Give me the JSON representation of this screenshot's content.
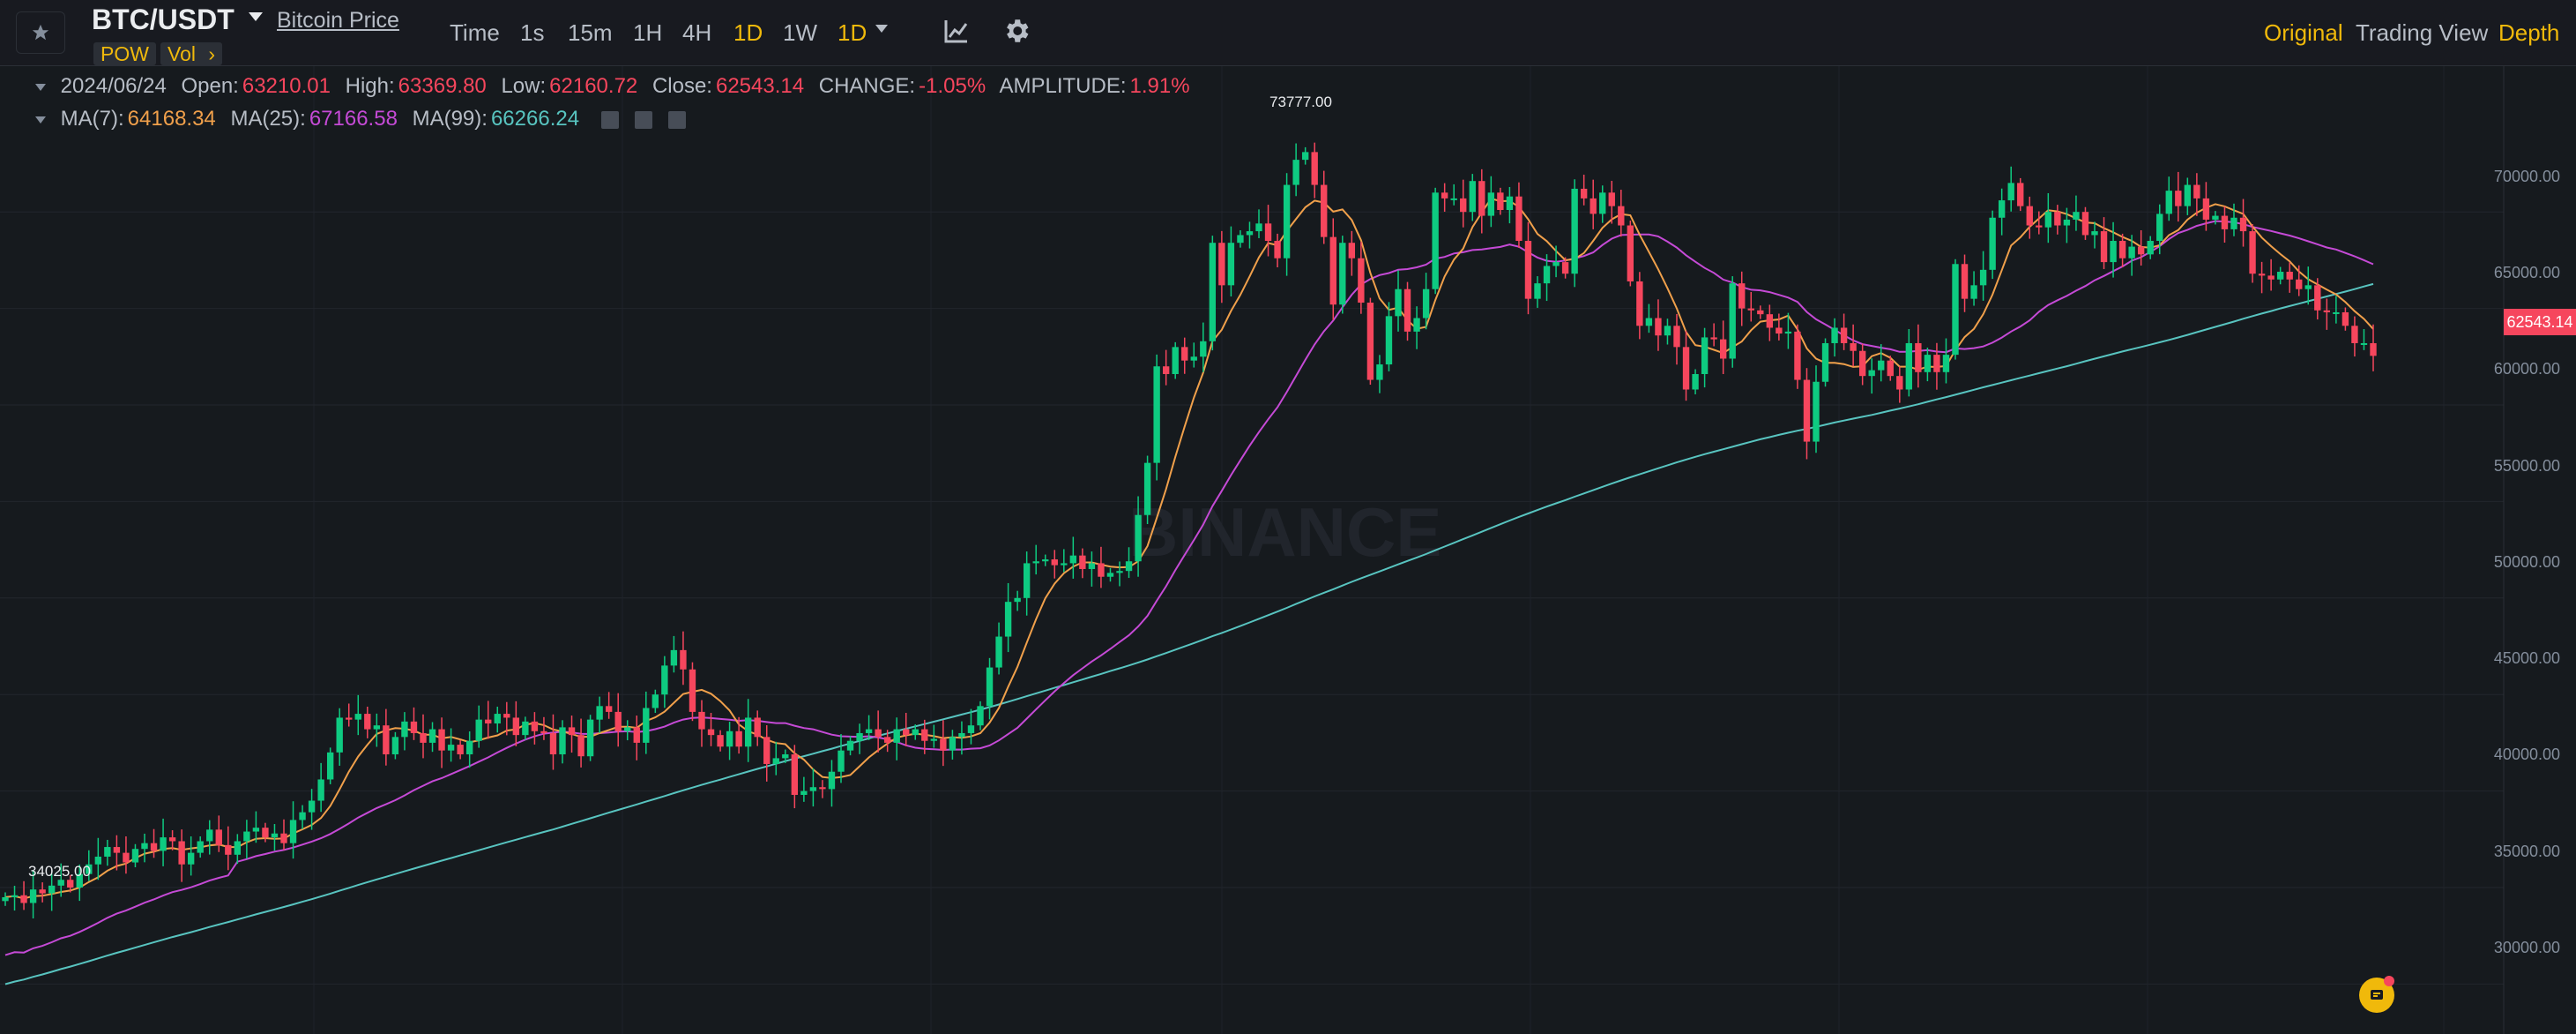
{
  "header": {
    "pair": "BTC/USDT",
    "subtitle_link": "Bitcoin Price",
    "tags": [
      "POW",
      "Vol"
    ],
    "intervals": [
      "Time",
      "1s",
      "15m",
      "1H",
      "4H",
      "1D",
      "1W"
    ],
    "active_interval": "1D",
    "interval_dropdown": "1D",
    "right_tabs": [
      "Original",
      "Trading View",
      "Depth"
    ],
    "active_right_tab": "Original"
  },
  "ohlc": {
    "date": "2024/06/24",
    "open_label": "Open:",
    "open": "63210.01",
    "high_label": "High:",
    "high": "63369.80",
    "low_label": "Low:",
    "low": "62160.72",
    "close_label": "Close:",
    "close": "62543.14",
    "change_label": "CHANGE:",
    "change": "-1.05%",
    "amplitude_label": "AMPLITUDE:",
    "amplitude": "1.91%"
  },
  "ma": {
    "ma7_label": "MA(7):",
    "ma7": "64168.34",
    "ma25_label": "MA(25):",
    "ma25": "67166.58",
    "ma99_label": "MA(99):",
    "ma99": "66266.24"
  },
  "chart": {
    "max_label": "73777.00",
    "min_label": "34025.00",
    "last_price": "62543.14",
    "watermark": "BINANCE",
    "y_ticks": [
      "70000.00",
      "65000.00",
      "60000.00",
      "55000.00",
      "50000.00",
      "45000.00",
      "40000.00",
      "35000.00",
      "30000.00"
    ]
  },
  "colors": {
    "up": "#0ecb81",
    "down": "#f6465d",
    "accent": "#f0b90b",
    "ma7": "#f0a04b",
    "ma25": "#c54ad6",
    "ma99": "#58c4c0"
  },
  "chart_data": {
    "type": "candlestick",
    "y_ticks": [
      30000,
      35000,
      40000,
      45000,
      50000,
      55000,
      60000,
      65000,
      70000
    ],
    "closes": [
      34500,
      34600,
      34200,
      34900,
      34700,
      35100,
      35400,
      35000,
      35700,
      36200,
      36600,
      37100,
      36800,
      36300,
      37000,
      37300,
      36900,
      37600,
      37400,
      36200,
      36800,
      37400,
      38000,
      37200,
      36700,
      37400,
      37900,
      38100,
      37600,
      37800,
      37300,
      38500,
      38900,
      39500,
      40600,
      42000,
      43800,
      43700,
      44000,
      43200,
      43400,
      41900,
      42800,
      43600,
      43000,
      42500,
      43200,
      42100,
      42400,
      41900,
      42600,
      43700,
      43500,
      44000,
      43800,
      42900,
      43600,
      43100,
      43000,
      41900,
      43300,
      42900,
      41800,
      43700,
      44400,
      44100,
      43100,
      43300,
      42500,
      44300,
      45000,
      46500,
      47300,
      46300,
      44100,
      43200,
      42900,
      42300,
      43100,
      42300,
      43800,
      42800,
      41400,
      41700,
      41900,
      39800,
      40000,
      40200,
      40100,
      41000,
      42100,
      42600,
      43000,
      43200,
      42800,
      42500,
      43200,
      42900,
      43200,
      42600,
      42700,
      42100,
      42800,
      43000,
      43400,
      44400,
      46400,
      48000,
      49800,
      50000,
      51800,
      51900,
      52000,
      51700,
      51800,
      52200,
      51500,
      51800,
      51100,
      51300,
      51400,
      51900,
      54300,
      57000,
      62000,
      61600,
      63000,
      62300,
      62500,
      63300,
      68400,
      66200,
      68400,
      68800,
      69000,
      69400,
      68500,
      67600,
      71400,
      72700,
      73100,
      71400,
      68700,
      65200,
      68400,
      67600,
      65300,
      61300,
      62100,
      64600,
      66000,
      63800,
      64500,
      66000,
      71000,
      70700,
      70700,
      70000,
      71600,
      69800,
      71000,
      70100,
      70800,
      68500,
      65500,
      66300,
      67200,
      67400,
      66800,
      71200,
      70700,
      69900,
      71000,
      70300,
      69300,
      66400,
      64100,
      64500,
      63600,
      64100,
      63000,
      60800,
      61600,
      63500,
      63400,
      62400,
      66300,
      65000,
      64900,
      64700,
      64000,
      63700,
      63800,
      61300,
      58100,
      61200,
      63200,
      64000,
      63200,
      62800,
      61500,
      61800,
      62300,
      61500,
      60800,
      63200,
      61700,
      62600,
      61700,
      62600,
      67300,
      65500,
      66200,
      67000,
      69700,
      70600,
      71500,
      70300,
      69300,
      69200,
      70000,
      69300,
      69600,
      70000,
      68800,
      69000,
      67400,
      68500,
      67600,
      68200,
      67800,
      68500,
      69900,
      71100,
      70300,
      71400,
      70700,
      69600,
      69800,
      69100,
      69700,
      69000,
      66800,
      66700,
      66500,
      66900,
      66500,
      66000,
      66200,
      64900,
      64800,
      64800,
      64100,
      63200,
      63200,
      62543
    ]
  }
}
